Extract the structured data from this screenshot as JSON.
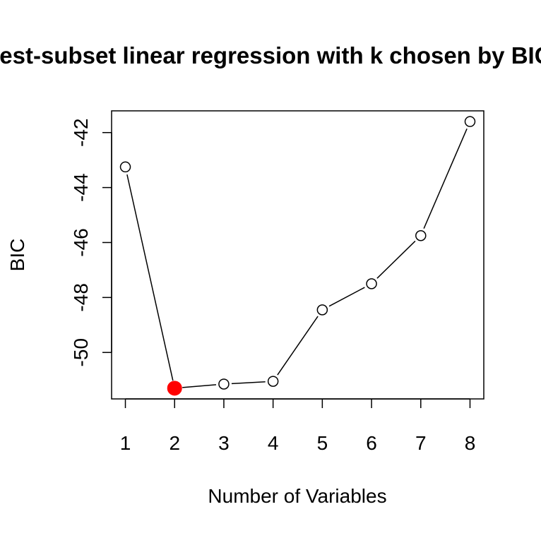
{
  "chart_data": {
    "type": "line",
    "title": "Best-subset linear regression with k chosen by BIC",
    "xlabel": "Number of Variables",
    "ylabel": "BIC",
    "x": [
      1,
      2,
      3,
      4,
      5,
      6,
      7,
      8
    ],
    "series": [
      {
        "values": [
          -43.25,
          -51.3,
          -51.15,
          -51.05,
          -48.45,
          -47.5,
          -45.75,
          -41.6
        ]
      }
    ],
    "xticks": [
      "1",
      "2",
      "3",
      "4",
      "5",
      "6",
      "7",
      "8"
    ],
    "yticks": [
      "-50",
      "-48",
      "-46",
      "-44",
      "-42"
    ],
    "ytick_values": [
      -50,
      -48,
      -46,
      -44,
      -42
    ],
    "xlim": [
      0.72,
      8.28
    ],
    "ylim": [
      -51.69,
      -41.21
    ],
    "highlight": {
      "x": 2,
      "y": -51.3,
      "color": "#ff0000"
    },
    "marker": "open-circle",
    "line_color": "#000000",
    "grid": false,
    "legend": "none"
  }
}
